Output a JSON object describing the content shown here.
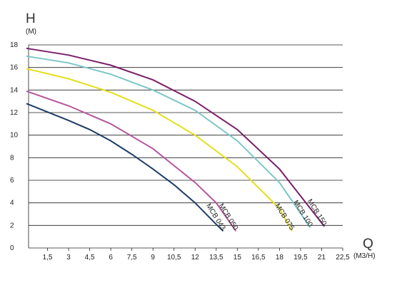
{
  "chart_data": {
    "type": "line",
    "y_label": "H",
    "y_unit": "(M)",
    "x_label": "Q",
    "x_unit": "(M3/H)",
    "xlim": [
      0,
      22.5
    ],
    "ylim": [
      0,
      18
    ],
    "xticks": [
      {
        "value": 1.5,
        "label": "1,5"
      },
      3,
      {
        "value": 4.5,
        "label": "4,5"
      },
      6,
      {
        "value": 7.5,
        "label": "7,5"
      },
      9,
      {
        "value": 10.5,
        "label": "10,5"
      },
      12,
      {
        "value": 13.5,
        "label": "13,5"
      },
      15,
      {
        "value": 16.5,
        "label": "16,5"
      },
      18,
      {
        "value": 19.5,
        "label": "19,5"
      },
      21,
      {
        "value": 22.5,
        "label": "22,5"
      }
    ],
    "yticks": [
      0,
      2,
      4,
      6,
      8,
      10,
      12,
      14,
      16,
      18
    ],
    "grid": true,
    "series": [
      {
        "name": "MCB 043",
        "color": "#1e3c66",
        "x": [
          0,
          3,
          4.5,
          6,
          7.5,
          9,
          10.5,
          12,
          13.5,
          14
        ],
        "values": [
          12.8,
          11.3,
          10.5,
          9.5,
          8.3,
          7,
          5.6,
          4,
          2.1,
          1.5
        ]
      },
      {
        "name": "MCB 050",
        "color": "#b5569d",
        "x": [
          0,
          3,
          6,
          9,
          12,
          13.5,
          14.9
        ],
        "values": [
          13.9,
          12.6,
          11,
          8.8,
          5.8,
          4,
          1.5
        ]
      },
      {
        "name": "MCB 075",
        "color": "#e6de1a",
        "x": [
          0,
          3,
          6,
          9,
          12,
          15,
          18,
          18.9
        ],
        "values": [
          15.9,
          15,
          13.8,
          12.2,
          10,
          7.2,
          3.5,
          1.5
        ]
      },
      {
        "name": "MCB 100",
        "color": "#7cc6c6",
        "x": [
          0,
          3,
          6,
          9,
          12,
          15,
          18,
          20.2
        ],
        "values": [
          17,
          16.4,
          15.4,
          14,
          12.2,
          9.5,
          5.8,
          1.8
        ]
      },
      {
        "name": "MCB 150",
        "color": "#7a1f6b",
        "x": [
          0,
          3,
          6,
          9,
          12,
          15,
          18,
          21.2
        ],
        "values": [
          17.7,
          17.1,
          16.2,
          14.9,
          13,
          10.5,
          7,
          1.9
        ]
      }
    ]
  }
}
